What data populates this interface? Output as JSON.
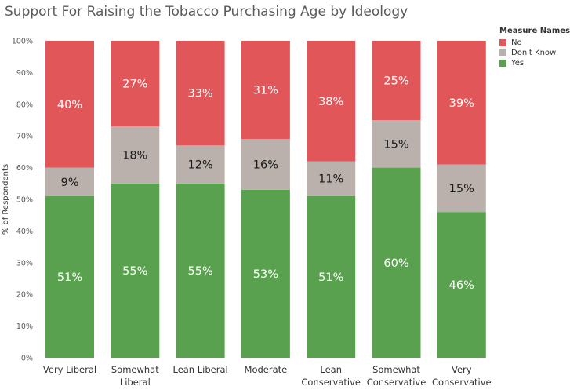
{
  "chart_data": {
    "type": "bar",
    "stacked": true,
    "title": "Support For Raising the Tobacco Purchasing Age by Ideology",
    "ylabel": "% of Respondents",
    "xlabel": "",
    "ylim": [
      0,
      100
    ],
    "yticks": [
      "0%",
      "10%",
      "20%",
      "30%",
      "40%",
      "50%",
      "60%",
      "70%",
      "80%",
      "90%",
      "100%"
    ],
    "categories": [
      [
        "Very Liberal"
      ],
      [
        "Somewhat",
        "Liberal"
      ],
      [
        "Lean Liberal"
      ],
      [
        "Moderate"
      ],
      [
        "Lean",
        "Conservative"
      ],
      [
        "Somewhat",
        "Conservative"
      ],
      [
        "Very",
        "Conservative"
      ]
    ],
    "series": [
      {
        "name": "Yes",
        "color": "#59a14f",
        "values": [
          51,
          55,
          55,
          53,
          51,
          60,
          46
        ],
        "labels": [
          "51%",
          "55%",
          "55%",
          "53%",
          "51%",
          "60%",
          "46%"
        ]
      },
      {
        "name": "Don't Know",
        "color": "#bab0ac",
        "values": [
          9,
          18,
          12,
          16,
          11,
          15,
          15
        ],
        "labels": [
          "9%",
          "18%",
          "12%",
          "16%",
          "11%",
          "15%",
          "15%"
        ]
      },
      {
        "name": "No",
        "color": "#e15759",
        "values": [
          40,
          27,
          33,
          31,
          38,
          25,
          39
        ],
        "labels": [
          "40%",
          "27%",
          "33%",
          "31%",
          "38%",
          "25%",
          "39%"
        ]
      }
    ],
    "legend": {
      "title": "Measure Names",
      "items": [
        {
          "name": "No",
          "color": "#e15759"
        },
        {
          "name": "Don't Know",
          "color": "#bab0ac"
        },
        {
          "name": "Yes",
          "color": "#59a14f"
        }
      ]
    },
    "grid": false
  }
}
